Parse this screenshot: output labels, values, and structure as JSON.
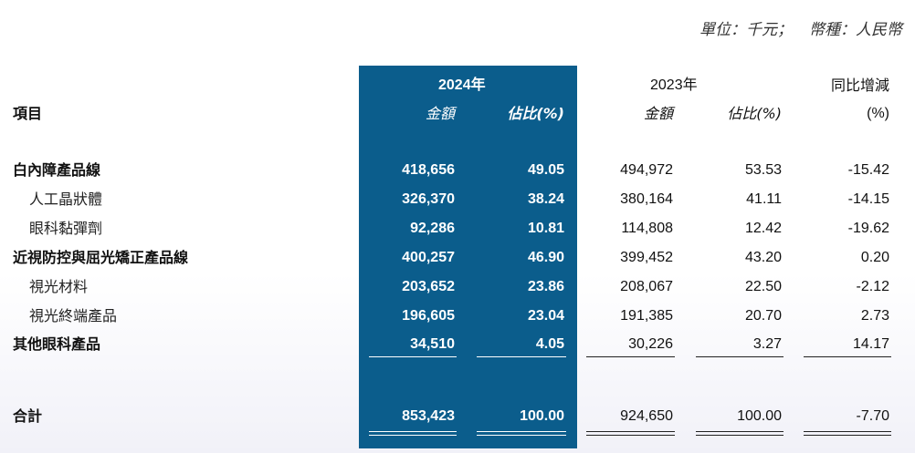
{
  "unit_text": "單位：千元；",
  "currency_text": "幣種：人民幣",
  "header": {
    "item": "項目",
    "y2024": "2024年",
    "y2023": "2023年",
    "yoy": "同比增減",
    "amount_2024": "金額",
    "share_2024": "佔比(%)",
    "amount_2023": "金額",
    "share_2023": "佔比(%)",
    "yoy_unit": "(%)"
  },
  "rows": [
    {
      "label": "白內障產品線",
      "a24": "418,656",
      "s24": "49.05",
      "a23": "494,972",
      "s23": "53.53",
      "yoy": "-15.42"
    },
    {
      "label": "人工晶狀體",
      "a24": "326,370",
      "s24": "38.24",
      "a23": "380,164",
      "s23": "41.11",
      "yoy": "-14.15"
    },
    {
      "label": "眼科黏彈劑",
      "a24": "92,286",
      "s24": "10.81",
      "a23": "114,808",
      "s23": "12.42",
      "yoy": "-19.62"
    },
    {
      "label": "近視防控與屈光矯正產品線",
      "a24": "400,257",
      "s24": "46.90",
      "a23": "399,452",
      "s23": "43.20",
      "yoy": "0.20"
    },
    {
      "label": "視光材料",
      "a24": "203,652",
      "s24": "23.86",
      "a23": "208,067",
      "s23": "22.50",
      "yoy": "-2.12"
    },
    {
      "label": "視光終端產品",
      "a24": "196,605",
      "s24": "23.04",
      "a23": "191,385",
      "s23": "20.70",
      "yoy": "2.73"
    },
    {
      "label": "其他眼科產品",
      "a24": "34,510",
      "s24": "4.05",
      "a23": "30,226",
      "s23": "3.27",
      "yoy": "14.17"
    }
  ],
  "total": {
    "label": "合計",
    "a24": "853,423",
    "s24": "100.00",
    "a23": "924,650",
    "s23": "100.00",
    "yoy": "-7.70"
  }
}
